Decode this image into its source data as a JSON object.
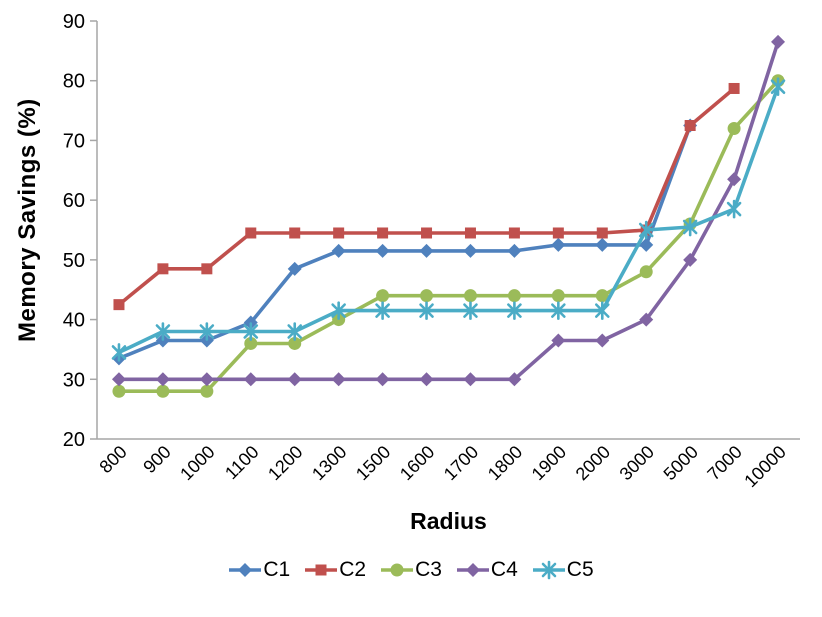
{
  "chart_data": {
    "type": "line",
    "title": "",
    "xlabel": "Radius",
    "ylabel": "Memory Savings (%)",
    "categories": [
      "800",
      "900",
      "1000",
      "1100",
      "1200",
      "1300",
      "1500",
      "1600",
      "1700",
      "1800",
      "1900",
      "2000",
      "3000",
      "5000",
      "7000",
      "10000"
    ],
    "ylim": [
      20,
      90
    ],
    "yticks": [
      20,
      30,
      40,
      50,
      60,
      70,
      80,
      90
    ],
    "grid": false,
    "legend_position": "bottom",
    "axis_color": "#A6A6A6",
    "text_color": "#000000",
    "series": [
      {
        "name": "C1",
        "color": "#4F81BD",
        "marker": "diamond",
        "values": [
          33.5,
          36.5,
          36.5,
          39.5,
          48.5,
          51.5,
          51.5,
          51.5,
          51.5,
          51.5,
          52.5,
          52.5,
          52.5,
          72.5,
          null,
          null
        ]
      },
      {
        "name": "C2",
        "color": "#C0504D",
        "marker": "square",
        "values": [
          42.5,
          48.5,
          48.5,
          54.5,
          54.5,
          54.5,
          54.5,
          54.5,
          54.5,
          54.5,
          54.5,
          54.5,
          55,
          72.5,
          78.7,
          null
        ]
      },
      {
        "name": "C3",
        "color": "#9BBB59",
        "marker": "circle",
        "values": [
          28,
          28,
          28,
          36,
          36,
          40,
          44,
          44,
          44,
          44,
          44,
          44,
          48,
          56,
          72,
          80
        ]
      },
      {
        "name": "C4",
        "color": "#8064A2",
        "marker": "diamond",
        "values": [
          30,
          30,
          30,
          30,
          30,
          30,
          30,
          30,
          30,
          30,
          36.5,
          36.5,
          40,
          50,
          63.5,
          86.5
        ]
      },
      {
        "name": "C5",
        "color": "#4BACC6",
        "marker": "asterisk",
        "values": [
          34.5,
          38,
          38,
          38,
          38,
          41.5,
          41.5,
          41.5,
          41.5,
          41.5,
          41.5,
          41.5,
          55,
          55.5,
          58.5,
          79
        ]
      }
    ]
  }
}
